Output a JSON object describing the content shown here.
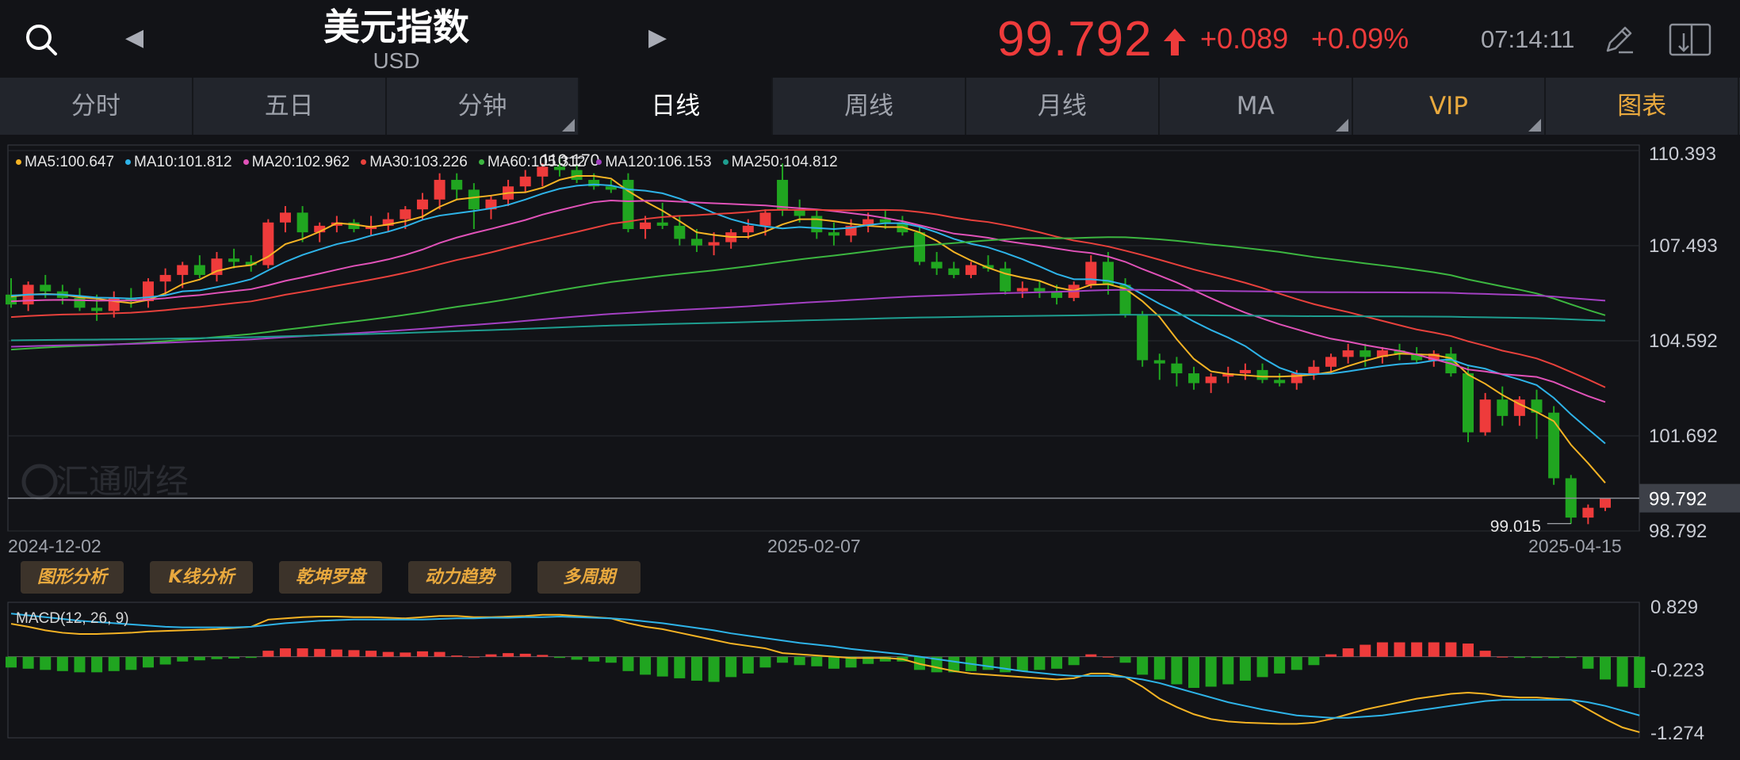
{
  "header": {
    "title": "美元指数",
    "subtitle": "USD",
    "price": "99.792",
    "change": "+0.089",
    "change_pct": "+0.09%",
    "time": "07:14:11",
    "prev_arrow": "◀",
    "next_arrow": "▶"
  },
  "tabs": [
    {
      "label": "分时",
      "corner": false,
      "style": "normal"
    },
    {
      "label": "五日",
      "corner": false,
      "style": "normal"
    },
    {
      "label": "分钟",
      "corner": true,
      "style": "normal"
    },
    {
      "label": "日线",
      "corner": false,
      "style": "active"
    },
    {
      "label": "周线",
      "corner": false,
      "style": "normal"
    },
    {
      "label": "月线",
      "corner": false,
      "style": "normal"
    },
    {
      "label": "MA",
      "corner": true,
      "style": "normal"
    },
    {
      "label": "VIP",
      "corner": true,
      "style": "gold"
    },
    {
      "label": "图表",
      "corner": false,
      "style": "gold"
    }
  ],
  "tools": [
    "图形分析",
    "K线分析",
    "乾坤罗盘",
    "动力趋势",
    "多周期"
  ],
  "ma_legend": [
    {
      "text": "MA5:100.647",
      "color": "#f5b324"
    },
    {
      "text": "MA10:101.812",
      "color": "#2eb3e8"
    },
    {
      "text": "MA20:102.962",
      "color": "#e052b8"
    },
    {
      "text": "MA30:103.226",
      "color": "#e8413c"
    },
    {
      "text": "MA60:105.312",
      "color": "#3cb640"
    },
    {
      "text": "MA120:106.153",
      "color": "#a340c2"
    },
    {
      "text": "MA250:104.812",
      "color": "#1e9e90"
    }
  ],
  "macd_label": "MACD(12, 26, 9)",
  "colors": {
    "up": "#ee3b3b",
    "down": "#20a520",
    "accent": "#e9a93e"
  },
  "chart_data": {
    "type": "candlestick",
    "price_axis": {
      "ticks": [
        "110.393",
        "107.493",
        "104.592",
        "101.692",
        "98.792"
      ],
      "min": 98.792,
      "max": 110.393
    },
    "current_price_label": "99.792",
    "current_price": 99.792,
    "high_label": "110.170",
    "high": 110.17,
    "low_label": "99.015",
    "low": 99.015,
    "dates": [
      "2024-12-02",
      "2025-02-07",
      "2025-04-15"
    ],
    "watermark": "汇通财经",
    "candles": [
      [
        106.0,
        106.5,
        105.6,
        105.7
      ],
      [
        105.7,
        106.4,
        105.5,
        106.3
      ],
      [
        106.3,
        106.6,
        105.9,
        106.1
      ],
      [
        106.1,
        106.3,
        105.7,
        105.9
      ],
      [
        105.9,
        106.2,
        105.5,
        105.6
      ],
      [
        105.6,
        106.0,
        105.2,
        105.5
      ],
      [
        105.5,
        106.1,
        105.3,
        105.9
      ],
      [
        105.9,
        106.2,
        105.6,
        105.8
      ],
      [
        105.8,
        106.5,
        105.6,
        106.4
      ],
      [
        106.4,
        106.8,
        106.0,
        106.6
      ],
      [
        106.6,
        107.0,
        106.2,
        106.9
      ],
      [
        106.9,
        107.2,
        106.5,
        106.6
      ],
      [
        106.6,
        107.3,
        106.4,
        107.1
      ],
      [
        107.1,
        107.4,
        106.8,
        107.0
      ],
      [
        107.0,
        107.2,
        106.7,
        106.9
      ],
      [
        106.9,
        108.3,
        106.8,
        108.2
      ],
      [
        108.2,
        108.7,
        107.9,
        108.5
      ],
      [
        108.5,
        108.7,
        107.6,
        107.9
      ],
      [
        107.9,
        108.2,
        107.6,
        108.1
      ],
      [
        108.1,
        108.4,
        107.9,
        108.2
      ],
      [
        108.2,
        108.3,
        107.9,
        108.0
      ],
      [
        108.0,
        108.4,
        107.8,
        108.1
      ],
      [
        108.1,
        108.5,
        107.9,
        108.3
      ],
      [
        108.3,
        108.7,
        108.0,
        108.6
      ],
      [
        108.6,
        109.1,
        108.3,
        108.9
      ],
      [
        108.9,
        109.7,
        108.6,
        109.5
      ],
      [
        109.5,
        109.7,
        108.9,
        109.2
      ],
      [
        109.2,
        109.4,
        108.0,
        108.6
      ],
      [
        108.6,
        109.0,
        108.3,
        108.9
      ],
      [
        108.9,
        109.5,
        108.7,
        109.3
      ],
      [
        109.3,
        109.8,
        109.1,
        109.6
      ],
      [
        109.6,
        110.0,
        109.3,
        109.9
      ],
      [
        109.9,
        110.17,
        109.6,
        109.8
      ],
      [
        109.8,
        110.0,
        109.4,
        109.5
      ],
      [
        109.5,
        109.7,
        109.2,
        109.3
      ],
      [
        109.3,
        109.5,
        109.1,
        109.2
      ],
      [
        109.5,
        109.7,
        107.9,
        108.0
      ],
      [
        108.0,
        108.4,
        107.7,
        108.2
      ],
      [
        108.2,
        108.8,
        108.0,
        108.1
      ],
      [
        108.1,
        108.4,
        107.5,
        107.7
      ],
      [
        107.7,
        108.0,
        107.3,
        107.5
      ],
      [
        107.5,
        107.9,
        107.2,
        107.6
      ],
      [
        107.6,
        108.0,
        107.4,
        107.9
      ],
      [
        107.9,
        108.3,
        107.7,
        108.1
      ],
      [
        108.1,
        108.6,
        107.8,
        108.5
      ],
      [
        109.5,
        110.0,
        108.4,
        108.6
      ],
      [
        108.6,
        108.9,
        108.2,
        108.4
      ],
      [
        108.4,
        108.6,
        107.7,
        107.9
      ],
      [
        107.9,
        108.2,
        107.5,
        107.8
      ],
      [
        107.8,
        108.3,
        107.6,
        108.1
      ],
      [
        108.1,
        108.5,
        107.9,
        108.3
      ],
      [
        108.3,
        108.6,
        108.0,
        108.2
      ],
      [
        108.2,
        108.4,
        107.8,
        107.9
      ],
      [
        107.9,
        108.1,
        106.9,
        107.0
      ],
      [
        107.0,
        107.3,
        106.6,
        106.8
      ],
      [
        106.8,
        107.0,
        106.5,
        106.6
      ],
      [
        106.6,
        107.0,
        106.5,
        106.9
      ],
      [
        106.9,
        107.2,
        106.7,
        106.8
      ],
      [
        106.8,
        107.0,
        106.0,
        106.1
      ],
      [
        106.1,
        106.4,
        105.9,
        106.2
      ],
      [
        106.2,
        106.4,
        105.9,
        106.1
      ],
      [
        106.1,
        106.3,
        105.7,
        105.9
      ],
      [
        105.9,
        106.4,
        105.8,
        106.3
      ],
      [
        106.3,
        107.2,
        106.2,
        107.0
      ],
      [
        107.0,
        107.3,
        106.0,
        106.3
      ],
      [
        106.3,
        106.5,
        105.3,
        105.4
      ],
      [
        105.4,
        105.5,
        103.8,
        104.0
      ],
      [
        104.0,
        104.2,
        103.4,
        103.9
      ],
      [
        103.9,
        104.1,
        103.2,
        103.6
      ],
      [
        103.6,
        103.8,
        103.1,
        103.3
      ],
      [
        103.3,
        103.6,
        103.0,
        103.5
      ],
      [
        103.5,
        103.8,
        103.3,
        103.6
      ],
      [
        103.6,
        103.9,
        103.4,
        103.7
      ],
      [
        103.7,
        103.9,
        103.3,
        103.4
      ],
      [
        103.4,
        103.6,
        103.2,
        103.3
      ],
      [
        103.3,
        103.7,
        103.1,
        103.6
      ],
      [
        103.6,
        104.0,
        103.4,
        103.8
      ],
      [
        103.8,
        104.2,
        103.6,
        104.1
      ],
      [
        104.1,
        104.5,
        103.9,
        104.3
      ],
      [
        104.3,
        104.5,
        103.8,
        104.1
      ],
      [
        104.1,
        104.4,
        103.9,
        104.3
      ],
      [
        104.3,
        104.5,
        104.0,
        104.2
      ],
      [
        104.2,
        104.4,
        103.9,
        104.0
      ],
      [
        104.0,
        104.3,
        103.8,
        104.2
      ],
      [
        104.2,
        104.4,
        103.5,
        103.6
      ],
      [
        103.6,
        103.8,
        101.5,
        101.8
      ],
      [
        101.8,
        103.0,
        101.7,
        102.8
      ],
      [
        102.8,
        103.2,
        102.0,
        102.3
      ],
      [
        102.3,
        102.9,
        102.0,
        102.8
      ],
      [
        102.8,
        103.1,
        101.6,
        102.4
      ],
      [
        102.4,
        102.6,
        100.2,
        100.4
      ],
      [
        100.4,
        100.5,
        99.015,
        99.2
      ],
      [
        99.2,
        99.6,
        99.0,
        99.5
      ],
      [
        99.5,
        99.8,
        99.4,
        99.792
      ]
    ],
    "macd_axis": {
      "ticks": [
        "0.829",
        "-0.223",
        "-1.274"
      ],
      "min": -1.274,
      "max": 0.829
    },
    "macd_hist": [
      -0.18,
      -0.2,
      -0.22,
      -0.24,
      -0.26,
      -0.26,
      -0.24,
      -0.22,
      -0.18,
      -0.13,
      -0.08,
      -0.06,
      -0.04,
      -0.03,
      -0.02,
      0.1,
      0.14,
      0.14,
      0.13,
      0.12,
      0.11,
      0.1,
      0.08,
      0.07,
      0.09,
      0.08,
      0.02,
      0.0,
      0.04,
      0.06,
      0.05,
      0.03,
      -0.02,
      -0.05,
      -0.08,
      -0.1,
      -0.24,
      -0.3,
      -0.33,
      -0.36,
      -0.4,
      -0.42,
      -0.34,
      -0.28,
      -0.18,
      -0.1,
      -0.14,
      -0.16,
      -0.2,
      -0.18,
      -0.12,
      -0.08,
      -0.08,
      -0.22,
      -0.26,
      -0.26,
      -0.24,
      -0.22,
      -0.26,
      -0.24,
      -0.22,
      -0.2,
      -0.14,
      0.04,
      0.0,
      -0.1,
      -0.3,
      -0.38,
      -0.46,
      -0.52,
      -0.5,
      -0.46,
      -0.4,
      -0.34,
      -0.28,
      -0.22,
      -0.14,
      0.04,
      0.14,
      0.2,
      0.24,
      0.24,
      0.24,
      0.24,
      0.24,
      0.22,
      0.1,
      0.0,
      -0.02,
      -0.02,
      -0.02,
      -0.02,
      -0.2,
      -0.38,
      -0.5,
      -0.52
    ],
    "macd_dif": [
      0.55,
      0.5,
      0.44,
      0.4,
      0.38,
      0.38,
      0.39,
      0.4,
      0.42,
      0.43,
      0.44,
      0.45,
      0.46,
      0.48,
      0.5,
      0.62,
      0.64,
      0.66,
      0.67,
      0.67,
      0.66,
      0.66,
      0.65,
      0.64,
      0.66,
      0.68,
      0.68,
      0.66,
      0.66,
      0.67,
      0.68,
      0.7,
      0.7,
      0.68,
      0.66,
      0.64,
      0.56,
      0.5,
      0.46,
      0.4,
      0.34,
      0.28,
      0.22,
      0.18,
      0.14,
      0.06,
      0.04,
      0.02,
      0.0,
      -0.02,
      -0.02,
      -0.02,
      -0.04,
      -0.12,
      -0.18,
      -0.24,
      -0.28,
      -0.3,
      -0.32,
      -0.34,
      -0.36,
      -0.38,
      -0.36,
      -0.28,
      -0.28,
      -0.34,
      -0.5,
      -0.7,
      -0.84,
      -0.96,
      -1.04,
      -1.08,
      -1.1,
      -1.11,
      -1.12,
      -1.12,
      -1.1,
      -1.04,
      -0.96,
      -0.88,
      -0.82,
      -0.76,
      -0.7,
      -0.66,
      -0.62,
      -0.6,
      -0.62,
      -0.66,
      -0.68,
      -0.68,
      -0.7,
      -0.72,
      -0.88,
      -1.04,
      -1.18,
      -1.26
    ],
    "macd_dea": [
      0.72,
      0.69,
      0.66,
      0.63,
      0.6,
      0.58,
      0.56,
      0.54,
      0.52,
      0.5,
      0.49,
      0.49,
      0.49,
      0.49,
      0.5,
      0.53,
      0.56,
      0.58,
      0.6,
      0.61,
      0.62,
      0.62,
      0.62,
      0.62,
      0.62,
      0.63,
      0.64,
      0.64,
      0.65,
      0.65,
      0.66,
      0.66,
      0.67,
      0.66,
      0.65,
      0.64,
      0.62,
      0.59,
      0.56,
      0.52,
      0.48,
      0.44,
      0.39,
      0.35,
      0.31,
      0.27,
      0.23,
      0.2,
      0.17,
      0.13,
      0.1,
      0.07,
      0.04,
      0.0,
      -0.04,
      -0.08,
      -0.12,
      -0.16,
      -0.2,
      -0.24,
      -0.27,
      -0.3,
      -0.32,
      -0.32,
      -0.32,
      -0.34,
      -0.38,
      -0.44,
      -0.52,
      -0.6,
      -0.68,
      -0.76,
      -0.82,
      -0.88,
      -0.93,
      -0.98,
      -1.0,
      -1.02,
      -1.02,
      -1.0,
      -0.98,
      -0.94,
      -0.9,
      -0.86,
      -0.82,
      -0.78,
      -0.74,
      -0.72,
      -0.72,
      -0.72,
      -0.72,
      -0.72,
      -0.76,
      -0.82,
      -0.9,
      -0.98
    ]
  }
}
